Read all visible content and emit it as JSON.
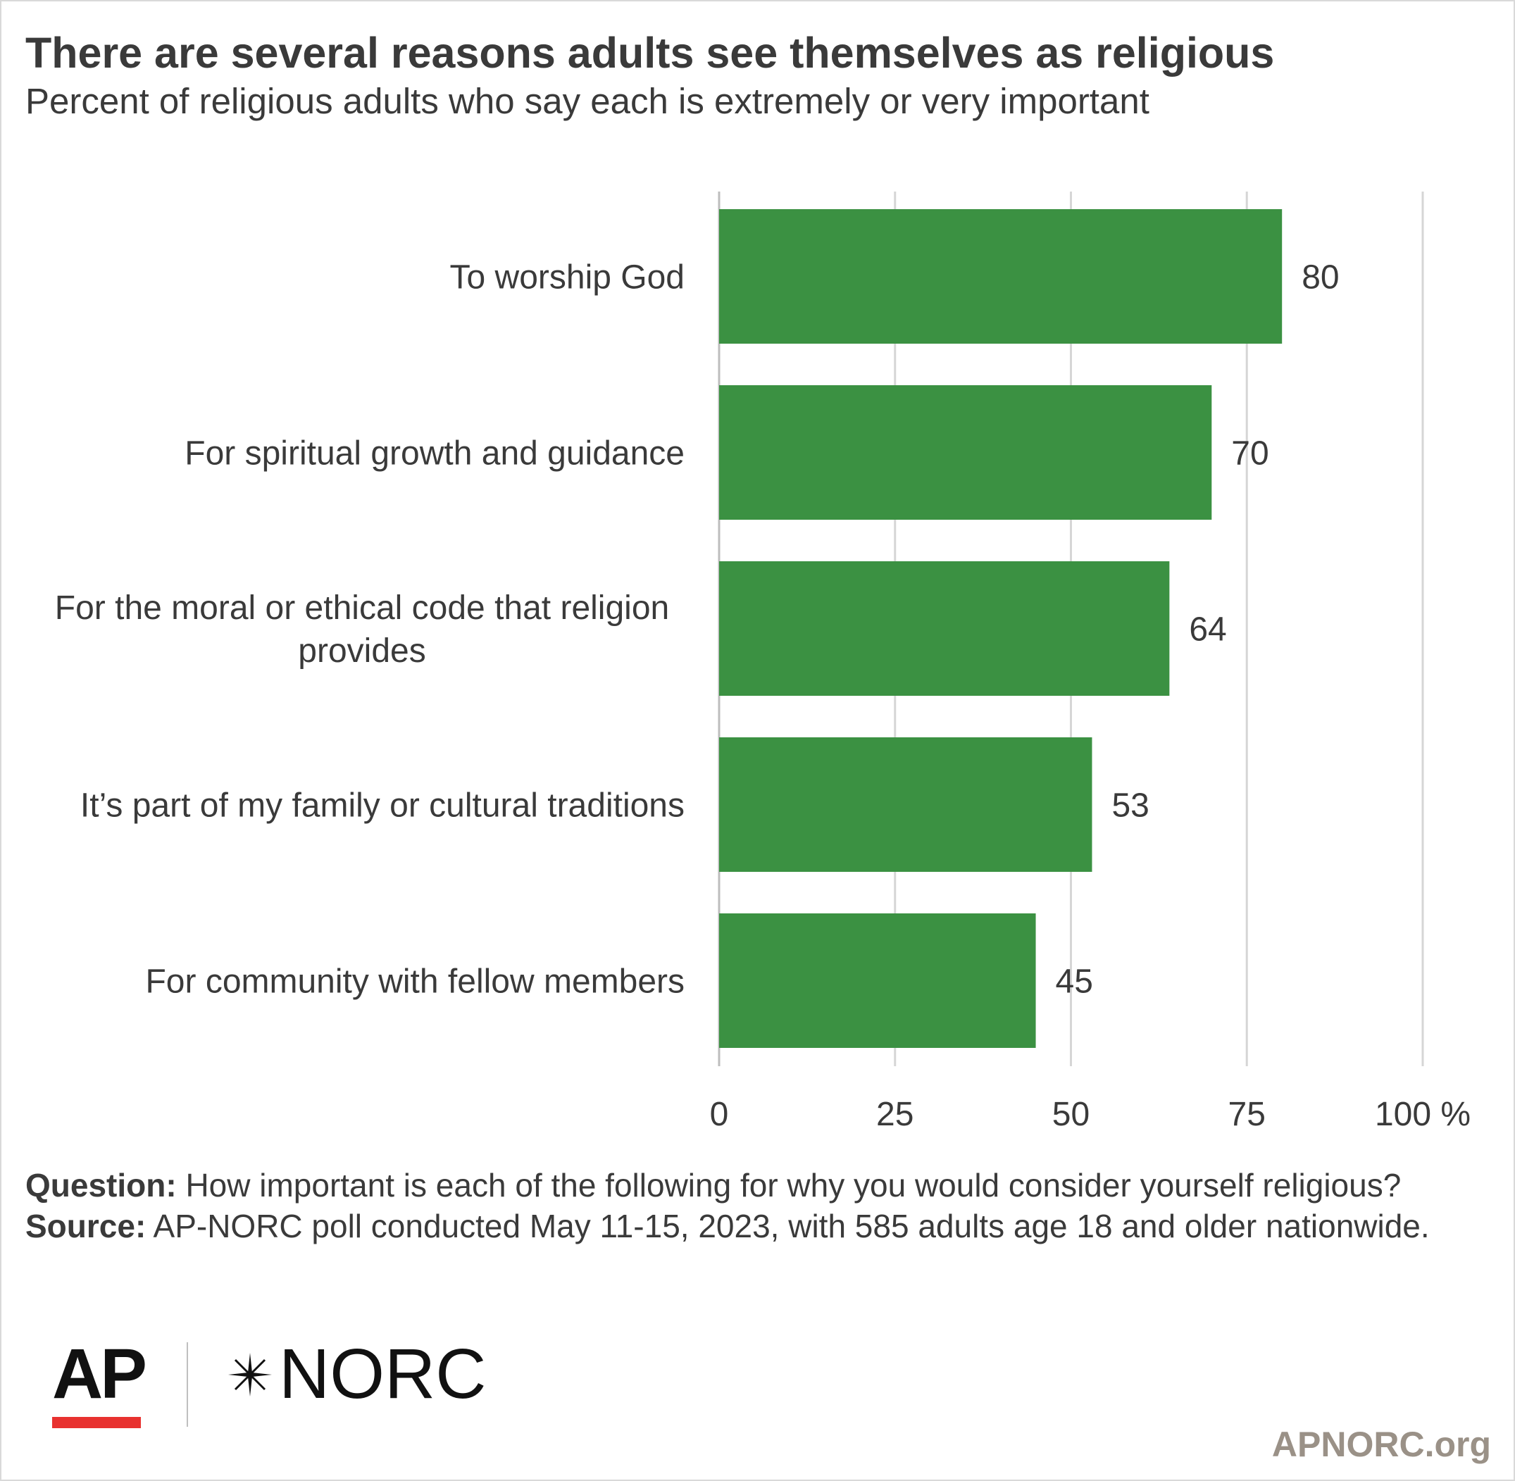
{
  "header": {
    "title": "There are several reasons adults see themselves as religious",
    "subtitle": "Percent of religious adults who say each is extremely or very important"
  },
  "chart_data": {
    "type": "bar",
    "orientation": "horizontal",
    "categories": [
      [
        "To worship God"
      ],
      [
        "For spiritual growth and guidance"
      ],
      [
        "For the moral or ethical code that religion",
        "provides"
      ],
      [
        "It’s part of my family or cultural traditions"
      ],
      [
        "For community with fellow members"
      ]
    ],
    "values": [
      80,
      70,
      64,
      53,
      45
    ],
    "xlim": [
      0,
      100
    ],
    "ticks": [
      "0",
      "25",
      "50",
      "75",
      "100"
    ],
    "tick_unit": "%",
    "grid": true,
    "bar_color": "#3b9142"
  },
  "footnotes": {
    "question_label": "Question:",
    "question_text": " How important is each of the following for why you would consider yourself religious?",
    "source_label": "Source:",
    "source_text": " AP-NORC poll conducted May 11-15, 2023, with 585 adults age 18 and older nationwide."
  },
  "branding": {
    "ap_logo": "AP",
    "norc_logo": "NORC",
    "site": "APNORC.org",
    "ap_red": "#e8312f"
  }
}
